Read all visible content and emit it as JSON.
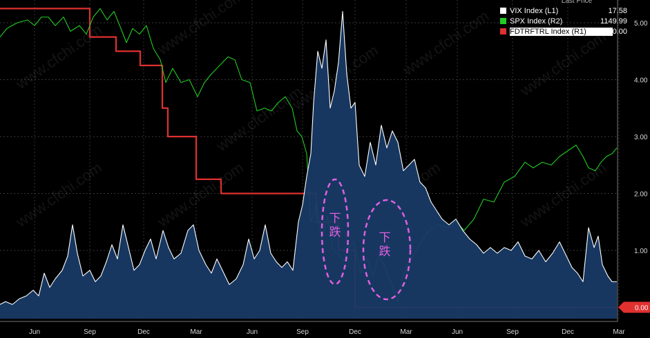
{
  "legend": {
    "header": "Last Price",
    "items": [
      {
        "name": "VIX Index  (L1)",
        "value": "17.58",
        "color": "#ffffff"
      },
      {
        "name": "SPX Index  (R2)",
        "value": "1149.99",
        "color": "#22cc22"
      },
      {
        "name": "FDTRFTRL Index  (R1)",
        "value": "0.00",
        "color": "#e03030"
      }
    ]
  },
  "chart_data": {
    "type": "line",
    "x_tick_labels": [
      "Jun",
      "Sep",
      "Dec",
      "Mar",
      "Jun",
      "Sep",
      "Dec",
      "Mar",
      "Jun",
      "Sep",
      "Dec",
      "Mar"
    ],
    "y_tick_labels_right": [
      "5.00",
      "4.00",
      "3.00",
      "2.00",
      "1.00"
    ],
    "current_value_label": "0.00",
    "ylim_right": [
      -0.2,
      5.4
    ],
    "annotations": [
      {
        "text": "下\n跌",
        "color": "#e060e0"
      },
      {
        "text": "下\n跌",
        "color": "#e060e0"
      }
    ],
    "watermark": "www.cfchi.com",
    "series": [
      {
        "name": "FDTRFTRL Index  (R1)",
        "color": "#e03030",
        "step": true,
        "points": [
          [
            0,
            5.25
          ],
          [
            130,
            5.25
          ],
          [
            130,
            4.75
          ],
          [
            168,
            4.75
          ],
          [
            168,
            4.5
          ],
          [
            203,
            4.5
          ],
          [
            203,
            4.25
          ],
          [
            235,
            4.25
          ],
          [
            235,
            3.5
          ],
          [
            243,
            3.5
          ],
          [
            243,
            3.0
          ],
          [
            284,
            3.0
          ],
          [
            284,
            2.25
          ],
          [
            320,
            2.25
          ],
          [
            320,
            2.0
          ],
          [
            458,
            2.0
          ],
          [
            458,
            1.5
          ],
          [
            490,
            1.5
          ],
          [
            490,
            1.0
          ],
          [
            514,
            1.0
          ],
          [
            514,
            0.0
          ],
          [
            893,
            0.0
          ]
        ]
      },
      {
        "name": "SPX Index  (R2)",
        "color": "#22cc22",
        "points": [
          [
            0,
            4.75
          ],
          [
            10,
            4.9
          ],
          [
            25,
            5.0
          ],
          [
            40,
            5.05
          ],
          [
            50,
            4.95
          ],
          [
            60,
            5.1
          ],
          [
            70,
            5.1
          ],
          [
            80,
            4.95
          ],
          [
            92,
            5.1
          ],
          [
            102,
            4.85
          ],
          [
            115,
            4.95
          ],
          [
            125,
            4.8
          ],
          [
            135,
            5.1
          ],
          [
            145,
            5.25
          ],
          [
            155,
            5.05
          ],
          [
            165,
            5.2
          ],
          [
            175,
            4.9
          ],
          [
            183,
            4.65
          ],
          [
            192,
            4.9
          ],
          [
            202,
            4.8
          ],
          [
            212,
            4.95
          ],
          [
            222,
            4.55
          ],
          [
            232,
            4.35
          ],
          [
            240,
            3.95
          ],
          [
            250,
            4.2
          ],
          [
            262,
            3.95
          ],
          [
            274,
            4.0
          ],
          [
            286,
            3.7
          ],
          [
            296,
            3.95
          ],
          [
            306,
            4.1
          ],
          [
            318,
            4.25
          ],
          [
            330,
            4.4
          ],
          [
            340,
            4.35
          ],
          [
            350,
            4.0
          ],
          [
            362,
            3.95
          ],
          [
            372,
            3.45
          ],
          [
            383,
            3.5
          ],
          [
            393,
            3.45
          ],
          [
            403,
            3.6
          ],
          [
            413,
            3.7
          ],
          [
            423,
            3.5
          ],
          [
            430,
            3.1
          ],
          [
            437,
            3.0
          ],
          [
            444,
            2.7
          ],
          [
            450,
            1.5
          ],
          [
            458,
            1.8
          ],
          [
            466,
            1.2
          ],
          [
            474,
            1.6
          ],
          [
            482,
            1.0
          ],
          [
            490,
            0.95
          ],
          [
            497,
            0.8
          ],
          [
            505,
            1.05
          ],
          [
            512,
            1.15
          ],
          [
            522,
            0.6
          ],
          [
            532,
            0.85
          ],
          [
            540,
            0.55
          ],
          [
            548,
            0.9
          ],
          [
            556,
            0.75
          ],
          [
            564,
            0.5
          ],
          [
            570,
            0.3
          ],
          [
            576,
            0.1
          ],
          [
            582,
            0.5
          ],
          [
            590,
            0.75
          ],
          [
            598,
            0.9
          ],
          [
            608,
            1.1
          ],
          [
            620,
            1.35
          ],
          [
            634,
            1.45
          ],
          [
            648,
            1.4
          ],
          [
            660,
            1.5
          ],
          [
            672,
            1.35
          ],
          [
            686,
            1.55
          ],
          [
            700,
            1.9
          ],
          [
            715,
            1.85
          ],
          [
            730,
            2.2
          ],
          [
            745,
            2.3
          ],
          [
            760,
            2.55
          ],
          [
            772,
            2.45
          ],
          [
            785,
            2.55
          ],
          [
            798,
            2.5
          ],
          [
            810,
            2.65
          ],
          [
            822,
            2.75
          ],
          [
            834,
            2.85
          ],
          [
            844,
            2.65
          ],
          [
            852,
            2.45
          ],
          [
            862,
            2.4
          ],
          [
            870,
            2.55
          ],
          [
            878,
            2.65
          ],
          [
            886,
            2.7
          ],
          [
            893,
            2.8
          ]
        ]
      },
      {
        "name": "VIX Index  (L1)",
        "color": "#ffffff",
        "area_fill": "#183a66",
        "points": [
          [
            0,
            0.05
          ],
          [
            8,
            0.1
          ],
          [
            18,
            0.05
          ],
          [
            28,
            0.15
          ],
          [
            38,
            0.2
          ],
          [
            48,
            0.3
          ],
          [
            56,
            0.2
          ],
          [
            64,
            0.6
          ],
          [
            72,
            0.35
          ],
          [
            80,
            0.5
          ],
          [
            90,
            0.65
          ],
          [
            98,
            0.9
          ],
          [
            105,
            1.45
          ],
          [
            112,
            0.95
          ],
          [
            120,
            0.55
          ],
          [
            130,
            0.65
          ],
          [
            138,
            0.45
          ],
          [
            146,
            0.55
          ],
          [
            154,
            0.8
          ],
          [
            162,
            1.1
          ],
          [
            170,
            0.85
          ],
          [
            178,
            1.45
          ],
          [
            186,
            1.05
          ],
          [
            194,
            0.65
          ],
          [
            202,
            0.75
          ],
          [
            210,
            1.0
          ],
          [
            218,
            1.2
          ],
          [
            226,
            0.85
          ],
          [
            236,
            1.35
          ],
          [
            244,
            1.05
          ],
          [
            252,
            0.85
          ],
          [
            262,
            0.95
          ],
          [
            272,
            1.35
          ],
          [
            280,
            1.45
          ],
          [
            288,
            1.0
          ],
          [
            298,
            0.75
          ],
          [
            306,
            0.6
          ],
          [
            314,
            0.85
          ],
          [
            322,
            0.65
          ],
          [
            332,
            0.4
          ],
          [
            342,
            0.5
          ],
          [
            352,
            0.75
          ],
          [
            360,
            1.2
          ],
          [
            368,
            0.85
          ],
          [
            376,
            1.0
          ],
          [
            384,
            1.45
          ],
          [
            392,
            0.95
          ],
          [
            400,
            0.8
          ],
          [
            408,
            0.7
          ],
          [
            416,
            0.8
          ],
          [
            424,
            0.65
          ],
          [
            432,
            1.5
          ],
          [
            438,
            1.8
          ],
          [
            444,
            2.3
          ],
          [
            450,
            2.7
          ],
          [
            454,
            3.6
          ],
          [
            460,
            4.5
          ],
          [
            466,
            4.2
          ],
          [
            472,
            4.7
          ],
          [
            478,
            3.5
          ],
          [
            484,
            3.8
          ],
          [
            490,
            4.3
          ],
          [
            496,
            5.2
          ],
          [
            502,
            4.1
          ],
          [
            508,
            3.5
          ],
          [
            514,
            3.6
          ],
          [
            520,
            2.5
          ],
          [
            528,
            2.3
          ],
          [
            536,
            2.9
          ],
          [
            544,
            2.5
          ],
          [
            552,
            3.2
          ],
          [
            560,
            2.8
          ],
          [
            568,
            3.1
          ],
          [
            576,
            2.9
          ],
          [
            584,
            2.4
          ],
          [
            592,
            2.5
          ],
          [
            600,
            2.6
          ],
          [
            608,
            2.2
          ],
          [
            616,
            2.1
          ],
          [
            624,
            1.85
          ],
          [
            632,
            1.7
          ],
          [
            640,
            1.55
          ],
          [
            650,
            1.45
          ],
          [
            660,
            1.55
          ],
          [
            670,
            1.35
          ],
          [
            680,
            1.2
          ],
          [
            690,
            1.1
          ],
          [
            700,
            0.95
          ],
          [
            710,
            1.05
          ],
          [
            720,
            0.95
          ],
          [
            730,
            1.05
          ],
          [
            740,
            1.0
          ],
          [
            750,
            1.15
          ],
          [
            760,
            0.9
          ],
          [
            770,
            0.85
          ],
          [
            780,
            1.0
          ],
          [
            790,
            0.8
          ],
          [
            800,
            0.95
          ],
          [
            810,
            1.15
          ],
          [
            820,
            0.9
          ],
          [
            828,
            0.7
          ],
          [
            836,
            0.6
          ],
          [
            844,
            0.45
          ],
          [
            852,
            1.4
          ],
          [
            860,
            1.05
          ],
          [
            866,
            1.25
          ],
          [
            872,
            0.75
          ],
          [
            880,
            0.55
          ],
          [
            886,
            0.45
          ],
          [
            893,
            0.45
          ]
        ]
      }
    ]
  }
}
